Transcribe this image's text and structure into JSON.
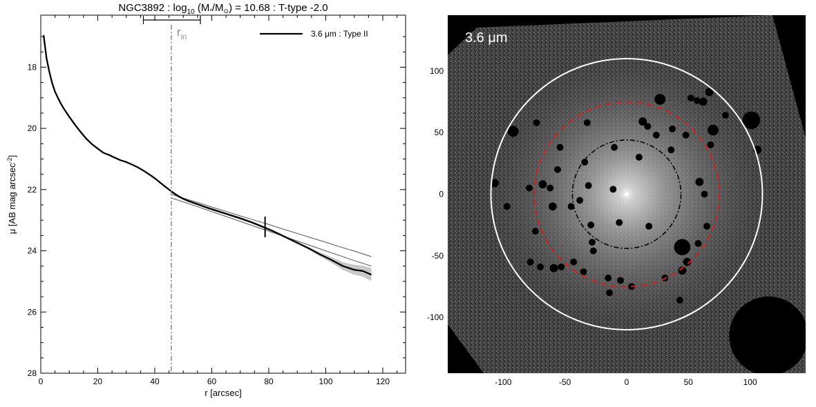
{
  "chart_data": [
    {
      "type": "line",
      "title_main": "NGC3892 : log",
      "title_sub": "10",
      "title_mid": " (M",
      "title_star": "*",
      "title_div": "/M",
      "title_sun": "⊙",
      "title_end": ") = 10.68 : T-type -2.0",
      "xlabel": "r [arcsec]",
      "ylabel_main": "μ [AB mag arcsec",
      "ylabel_sup": "-2",
      "ylabel_end": "]",
      "xlim": [
        0,
        128
      ],
      "ylim": [
        28,
        16.3
      ],
      "y_inverted": true,
      "xticks": [
        "0",
        "20",
        "40",
        "60",
        "80",
        "100",
        "120"
      ],
      "yticks": [
        "18",
        "20",
        "22",
        "24",
        "26",
        "28"
      ],
      "legend": "3.6 μm : Type II",
      "legend_position": "top-right",
      "annotation_main": "r",
      "annotation_sub": "in",
      "r_in": 45.8,
      "r_in_range": [
        36,
        56
      ],
      "break_marker": 78.7,
      "series": [
        {
          "name": "3.6 μm : Type II",
          "style": "thick black",
          "x": [
            1,
            2,
            3,
            4,
            5,
            6,
            7,
            8,
            9,
            10,
            12,
            14,
            16,
            18,
            20,
            22,
            24,
            26,
            28,
            30,
            32,
            34,
            36,
            38,
            40,
            42,
            44,
            46,
            48,
            50,
            52,
            55,
            58,
            62,
            66,
            70,
            74,
            78,
            82,
            86,
            90,
            94,
            98,
            102,
            106,
            110,
            113,
            116
          ],
          "y": [
            16.95,
            17.7,
            18.15,
            18.52,
            18.8,
            19.0,
            19.18,
            19.34,
            19.48,
            19.62,
            19.88,
            20.12,
            20.34,
            20.52,
            20.66,
            20.8,
            20.87,
            20.96,
            21.04,
            21.1,
            21.18,
            21.27,
            21.38,
            21.5,
            21.63,
            21.78,
            21.93,
            22.07,
            22.2,
            22.3,
            22.38,
            22.48,
            22.58,
            22.7,
            22.82,
            22.94,
            23.07,
            23.22,
            23.38,
            23.56,
            23.74,
            23.92,
            24.12,
            24.3,
            24.5,
            24.62,
            24.66,
            24.78
          ]
        },
        {
          "name": "",
          "style": "thin grey outer fit",
          "x": [
            46,
            50,
            55,
            60,
            65,
            70,
            75,
            80,
            85,
            90,
            95,
            100,
            105,
            110,
            116
          ],
          "y": [
            22.16,
            22.28,
            22.42,
            22.57,
            22.71,
            22.86,
            23.0,
            23.14,
            23.29,
            23.43,
            23.58,
            23.72,
            23.87,
            24.01,
            24.19
          ]
        },
        {
          "name": "",
          "style": "thin grey inner fit",
          "x": [
            46,
            50,
            55,
            60,
            65,
            70,
            75,
            80,
            85,
            90,
            95,
            100,
            105,
            110,
            116
          ],
          "y": [
            22.28,
            22.4,
            22.56,
            22.72,
            22.88,
            23.04,
            23.2,
            23.36,
            23.52,
            23.68,
            23.84,
            24.0,
            24.16,
            24.32,
            24.5
          ]
        }
      ]
    },
    {
      "type": "heatmap",
      "image_label": "3.6 μm",
      "xlim": [
        -145,
        145
      ],
      "ylim": [
        -145,
        145
      ],
      "xticks": [
        "-100",
        "-50",
        "0",
        "50",
        "100"
      ],
      "yticks": [
        "100",
        "50",
        "0",
        "-50",
        "-100"
      ],
      "circles": [
        {
          "name": "white-solid",
          "r": 110,
          "color": "#ffffff"
        },
        {
          "name": "red-dashed",
          "r": 75,
          "color": "#cc2222"
        },
        {
          "name": "black-dashdot",
          "r": 44,
          "color": "#000000"
        }
      ],
      "masks": [
        [
          -92,
          51,
          6
        ],
        [
          -73,
          58,
          3
        ],
        [
          -54,
          38,
          3
        ],
        [
          -56,
          20,
          3
        ],
        [
          -32,
          58,
          3
        ],
        [
          -34,
          26,
          3
        ],
        [
          -10,
          38,
          3
        ],
        [
          10,
          30,
          3
        ],
        [
          13,
          59,
          4
        ],
        [
          17,
          55,
          3
        ],
        [
          24,
          48,
          3
        ],
        [
          27,
          77,
          6
        ],
        [
          37,
          53,
          3
        ],
        [
          48,
          48,
          3
        ],
        [
          52,
          78,
          3
        ],
        [
          57,
          76,
          3
        ],
        [
          62,
          75,
          4
        ],
        [
          67,
          83,
          4
        ],
        [
          70,
          52,
          6
        ],
        [
          80,
          64,
          3
        ],
        [
          68,
          40,
          3
        ],
        [
          36,
          36,
          3
        ],
        [
          101,
          60,
          11
        ],
        [
          106,
          36,
          4
        ],
        [
          59,
          10,
          4
        ],
        [
          63,
          0,
          3
        ],
        [
          65,
          -26,
          3
        ],
        [
          58,
          -40,
          3
        ],
        [
          -107,
          9,
          4
        ],
        [
          -97,
          -10,
          3
        ],
        [
          -79,
          5,
          3
        ],
        [
          -68,
          8,
          4
        ],
        [
          -62,
          5,
          3
        ],
        [
          -60,
          -10,
          4
        ],
        [
          -45,
          -10,
          3
        ],
        [
          -38,
          -5,
          3
        ],
        [
          -31,
          7,
          3
        ],
        [
          -29,
          -25,
          3
        ],
        [
          -74,
          -30,
          3
        ],
        [
          -78,
          -55,
          3
        ],
        [
          -70,
          -59,
          3
        ],
        [
          -59,
          -60,
          4
        ],
        [
          -53,
          -59,
          3
        ],
        [
          -43,
          -55,
          3
        ],
        [
          -35,
          -63,
          3
        ],
        [
          -27,
          -46,
          3
        ],
        [
          -15,
          -68,
          3
        ],
        [
          -6,
          -23,
          3
        ],
        [
          -5,
          -70,
          3
        ],
        [
          4,
          -75,
          3
        ],
        [
          18,
          -26,
          3
        ],
        [
          31,
          -68,
          3
        ],
        [
          43,
          -86,
          3
        ],
        [
          49,
          -55,
          4
        ],
        [
          45,
          -43,
          10
        ],
        [
          45,
          -62,
          4
        ],
        [
          -11,
          4,
          3
        ],
        [
          -28,
          -39,
          3
        ],
        [
          -14,
          -80,
          3
        ]
      ],
      "big_mask": {
        "cx": 115,
        "cy": -115,
        "r": 32
      }
    }
  ]
}
